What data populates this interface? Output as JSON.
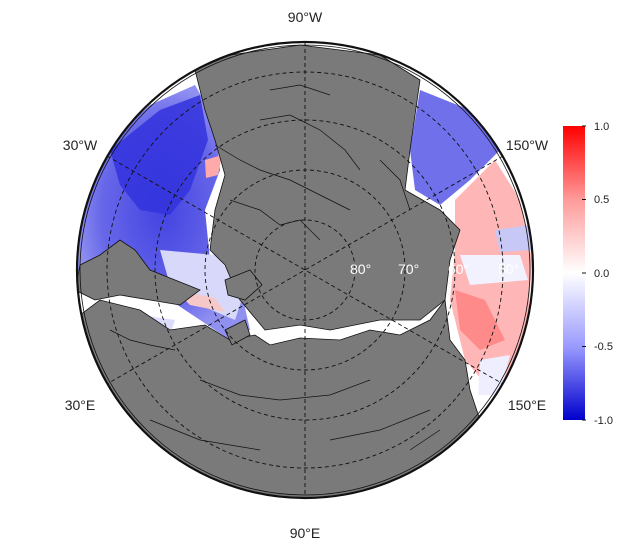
{
  "map": {
    "projection": "polar stereographic (north pole)",
    "longitude_labels": {
      "top": "90°W",
      "upper_left": "30°W",
      "upper_right": "150°W",
      "lower_left": "30°E",
      "lower_right": "150°E",
      "bottom": "90°E"
    },
    "latitude_labels": [
      "80°",
      "70°",
      "60°",
      "50°"
    ],
    "colors": {
      "land": "#7a7a7a",
      "coastline": "#111111",
      "graticule": "#111111",
      "negative": "#0000cc",
      "neutral": "#ffffff",
      "positive": "#ff0000"
    }
  },
  "colorbar": {
    "min": -1.0,
    "max": 1.0,
    "ticks": [
      "1.0",
      "0.5",
      "0.0",
      "-0.5",
      "-1.0"
    ]
  }
}
